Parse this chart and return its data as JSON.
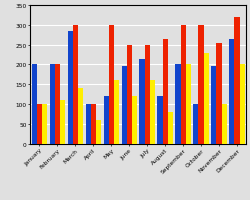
{
  "months": [
    "January",
    "February",
    "March",
    "April",
    "May",
    "June",
    "July",
    "August",
    "September",
    "October",
    "November",
    "December"
  ],
  "blue": [
    200,
    200,
    285,
    100,
    120,
    195,
    215,
    120,
    200,
    100,
    195,
    265
  ],
  "red": [
    100,
    200,
    300,
    100,
    300,
    250,
    250,
    265,
    300,
    300,
    255,
    320
  ],
  "yellow": [
    100,
    110,
    140,
    60,
    160,
    120,
    160,
    80,
    200,
    230,
    100,
    200
  ],
  "bar_colors": [
    "#1144cc",
    "#ee2200",
    "#ffee00"
  ],
  "ylim": [
    0,
    350
  ],
  "yticks": [
    0,
    50,
    100,
    150,
    200,
    250,
    300,
    350
  ],
  "bg_color": "#e0e0e0",
  "grid_color": "#ffffff",
  "border_color": "#000000",
  "figsize": [
    2.51,
    2.01
  ],
  "dpi": 100
}
